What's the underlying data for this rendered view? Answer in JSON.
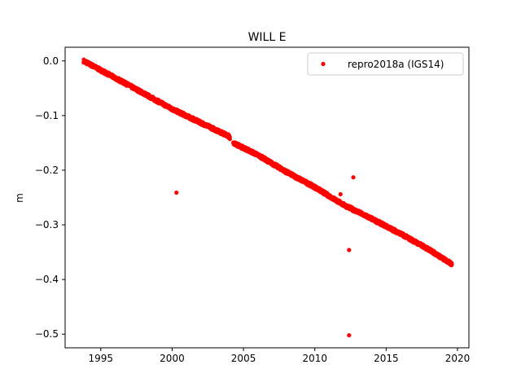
{
  "chart_data": {
    "type": "scatter",
    "title": "WILL E",
    "xlabel": "",
    "ylabel": "m",
    "xlim": [
      1992.5,
      2020.8
    ],
    "ylim": [
      -0.525,
      0.025
    ],
    "xticks": [
      1995,
      2000,
      2005,
      2010,
      2015,
      2020
    ],
    "yticks": [
      0.0,
      -0.1,
      -0.2,
      -0.3,
      -0.4,
      -0.5
    ],
    "xtick_labels": [
      "1995",
      "2000",
      "2005",
      "2010",
      "2015",
      "2020"
    ],
    "ytick_labels": [
      "0.0",
      "−0.1",
      "−0.2",
      "−0.3",
      "−0.4",
      "−0.5"
    ],
    "grid": false,
    "legend_position": "top-right",
    "series": [
      {
        "name": "repro2018a (IGS14)",
        "color": "#ff0000",
        "marker": "circle",
        "trend": {
          "x": [
            1993.8,
            1995.0,
            1997.0,
            2000.0,
            2002.0,
            2004.0,
            2004.3,
            2006.0,
            2008.0,
            2010.0,
            2012.0,
            2014.0,
            2016.0,
            2018.0,
            2019.6
          ],
          "y": [
            0.0,
            -0.017,
            -0.045,
            -0.088,
            -0.113,
            -0.138,
            -0.15,
            -0.172,
            -0.203,
            -0.231,
            -0.263,
            -0.289,
            -0.316,
            -0.345,
            -0.372
          ],
          "noise": 0.003
        },
        "gaps": [
          [
            2004.05,
            2004.28
          ]
        ],
        "outliers": [
          {
            "x": 2000.3,
            "y": -0.241
          },
          {
            "x": 2011.8,
            "y": -0.244
          },
          {
            "x": 2012.7,
            "y": -0.213
          },
          {
            "x": 2012.4,
            "y": -0.346
          },
          {
            "x": 2012.4,
            "y": -0.502
          }
        ]
      }
    ]
  }
}
